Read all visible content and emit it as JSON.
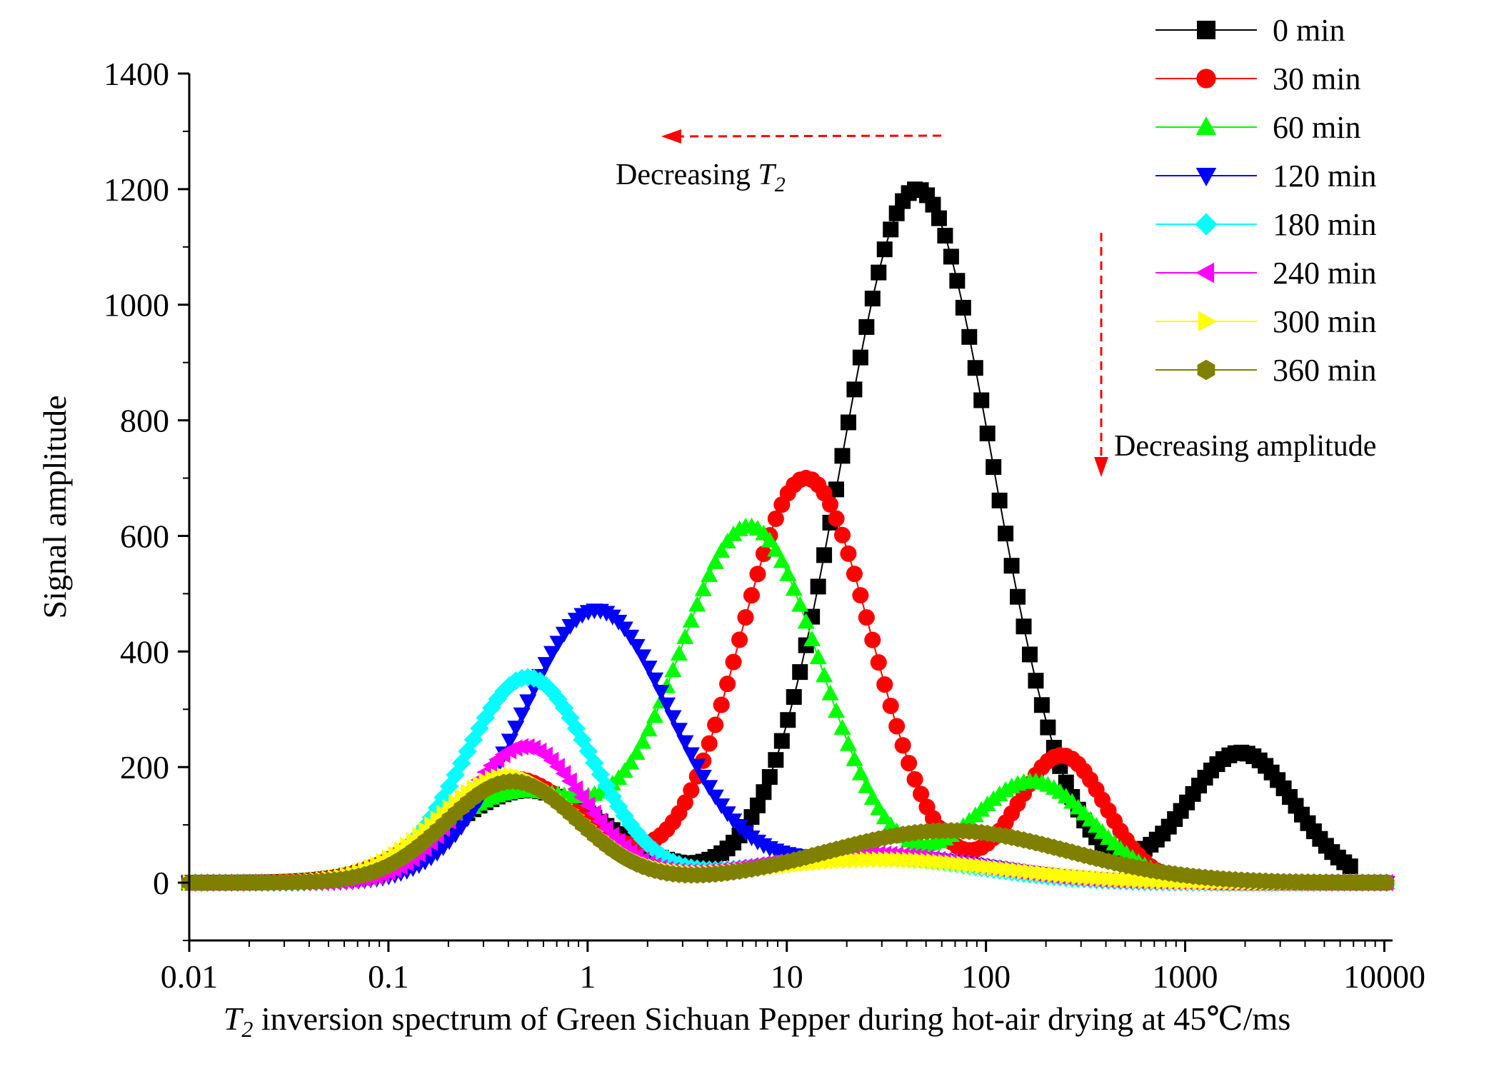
{
  "chart_data": {
    "type": "scatter",
    "title": "",
    "xlabel_symbol": "T",
    "xlabel_subscript": "2",
    "xlabel_rest": " inversion spectrum of Green Sichuan Pepper during hot-air drying at 45℃/ms",
    "ylabel": "Signal amplitude",
    "x_scale": "log",
    "xlim": [
      0.01,
      11000
    ],
    "ylim": [
      -100,
      1400
    ],
    "x_ticks": [
      0.01,
      0.1,
      1,
      10,
      100,
      1000,
      10000
    ],
    "x_tick_labels": [
      "0.01",
      "0.1",
      "1",
      "10",
      "100",
      "1000",
      "10000"
    ],
    "y_ticks": [
      0,
      200,
      400,
      600,
      800,
      1000,
      1200,
      1400
    ],
    "y_tick_labels": [
      "0",
      "200",
      "400",
      "600",
      "800",
      "1000",
      "1200",
      "1400"
    ],
    "grid": false,
    "legend_position": "top-right",
    "series": [
      {
        "name": "0 min",
        "color": "#000000",
        "marker": "square",
        "peaks": [
          {
            "center_T2": 0.5,
            "amplitude": 160,
            "width_decades": 0.4
          },
          {
            "center_T2": 45,
            "amplitude": 1200,
            "width_decades": 0.38
          },
          {
            "center_T2": 1900,
            "amplitude": 225,
            "width_decades": 0.27
          }
        ],
        "t2_range": [
          0.01,
          7000
        ]
      },
      {
        "name": "30 min",
        "color": "#ff0000",
        "marker": "circle",
        "peaks": [
          {
            "center_T2": 0.42,
            "amplitude": 180,
            "width_decades": 0.36
          },
          {
            "center_T2": 12.5,
            "amplitude": 700,
            "width_decades": 0.33
          },
          {
            "center_T2": 240,
            "amplitude": 220,
            "width_decades": 0.22
          }
        ],
        "t2_range": [
          0.01,
          11000
        ]
      },
      {
        "name": "60 min",
        "color": "#00ff00",
        "marker": "triangle-up",
        "peaks": [
          {
            "center_T2": 0.45,
            "amplitude": 155,
            "width_decades": 0.38
          },
          {
            "center_T2": 6.5,
            "amplitude": 615,
            "width_decades": 0.36
          },
          {
            "center_T2": 170,
            "amplitude": 175,
            "width_decades": 0.3
          }
        ],
        "t2_range": [
          0.01,
          11000
        ]
      },
      {
        "name": "120 min",
        "color": "#0000ff",
        "marker": "triangle-down",
        "peaks": [
          {
            "center_T2": 1.1,
            "amplitude": 470,
            "width_decades": 0.38
          },
          {
            "center_T2": 30,
            "amplitude": 45,
            "width_decades": 0.55
          }
        ],
        "t2_range": [
          0.01,
          11000
        ]
      },
      {
        "name": "180 min",
        "color": "#00ffff",
        "marker": "diamond",
        "peaks": [
          {
            "center_T2": 0.5,
            "amplitude": 355,
            "width_decades": 0.32
          },
          {
            "center_T2": 25,
            "amplitude": 45,
            "width_decades": 0.55
          }
        ],
        "t2_range": [
          0.01,
          11000
        ]
      },
      {
        "name": "240 min",
        "color": "#ff00ff",
        "marker": "triangle-left",
        "peaks": [
          {
            "center_T2": 0.48,
            "amplitude": 235,
            "width_decades": 0.3
          },
          {
            "center_T2": 25,
            "amplitude": 50,
            "width_decades": 0.55
          }
        ],
        "t2_range": [
          0.01,
          11000
        ]
      },
      {
        "name": "300 min",
        "color": "#ffff00",
        "marker": "triangle-right",
        "peaks": [
          {
            "center_T2": 0.4,
            "amplitude": 185,
            "width_decades": 0.35
          },
          {
            "center_T2": 30,
            "amplitude": 40,
            "width_decades": 0.6
          }
        ],
        "t2_range": [
          0.01,
          11000
        ]
      },
      {
        "name": "360 min",
        "color": "#808000",
        "marker": "hexagon",
        "peaks": [
          {
            "center_T2": 0.42,
            "amplitude": 175,
            "width_decades": 0.33
          },
          {
            "center_T2": 65,
            "amplitude": 90,
            "width_decades": 0.6
          }
        ],
        "t2_range": [
          0.01,
          11000
        ]
      }
    ],
    "annotations": [
      {
        "id": "t2-arrow",
        "text_prefix": "Decreasing  ",
        "text_symbol": "T",
        "text_subscript": "2",
        "direction": "left",
        "color": "#ff0000"
      },
      {
        "id": "amp-arrow",
        "text": "Decreasing  amplitude",
        "direction": "down",
        "color": "#ff0000"
      }
    ]
  }
}
